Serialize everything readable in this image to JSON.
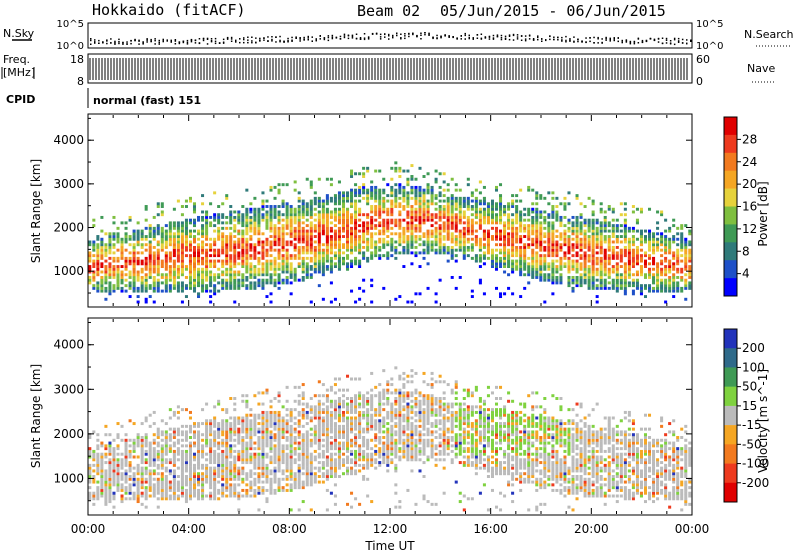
{
  "header": {
    "radar": "Hokkaido (fitACF)",
    "beam": "Beam 02",
    "date_range": "05/Jun/2015 - 06/Jun/2015"
  },
  "top_panels": {
    "nsky_label": "N.Sky",
    "nsky_ticks": [
      "10^5",
      "10^0"
    ],
    "nsearch_label": "N.Search",
    "nsearch_ticks": [
      "10^5",
      "10^0"
    ],
    "freq_label_1": "Freq.",
    "freq_label_2": "[MHz]",
    "freq_ticks": [
      "18",
      "8"
    ],
    "nave_label": "Nave",
    "nave_ticks": [
      "60",
      "0"
    ],
    "cpid_label": "CPID",
    "cpid_value": "normal (fast) 151"
  },
  "chart_data": [
    {
      "type": "heatmap",
      "quantity": "Power",
      "ylabel": "Slant Range [km]",
      "ylim": [
        180,
        4600
      ],
      "yticks": [
        1000,
        2000,
        3000,
        4000
      ],
      "colorbar_label": "Power [dB]",
      "colorbar_ticks": [
        4,
        8,
        12,
        16,
        20,
        24,
        28
      ],
      "colorbar_range": [
        0,
        32
      ],
      "colors": [
        "#0000ff",
        "#1e50c8",
        "#2f7a7a",
        "#3f9a55",
        "#7fbf3f",
        "#e6d23c",
        "#f5a623",
        "#f27a1f",
        "#ee3a1e",
        "#e00000"
      ]
    },
    {
      "type": "heatmap",
      "quantity": "Velocity",
      "ylabel": "Slant Range [km]",
      "ylim": [
        180,
        4600
      ],
      "yticks": [
        1000,
        2000,
        3000,
        4000
      ],
      "colorbar_label": "Velocity [m s^-1]",
      "colorbar_ticks": [
        200,
        100,
        50,
        15,
        -15,
        -50,
        -100,
        -200
      ],
      "colors": [
        "#2233bb",
        "#2f6a8a",
        "#3f9a55",
        "#7fd23f",
        "#bbbbbb",
        "#f5a623",
        "#f27a1f",
        "#ee3a1e",
        "#e00000"
      ]
    }
  ],
  "xaxis": {
    "label": "Time UT",
    "ticks": [
      "00:00",
      "04:00",
      "08:00",
      "12:00",
      "16:00",
      "20:00",
      "00:00"
    ]
  }
}
